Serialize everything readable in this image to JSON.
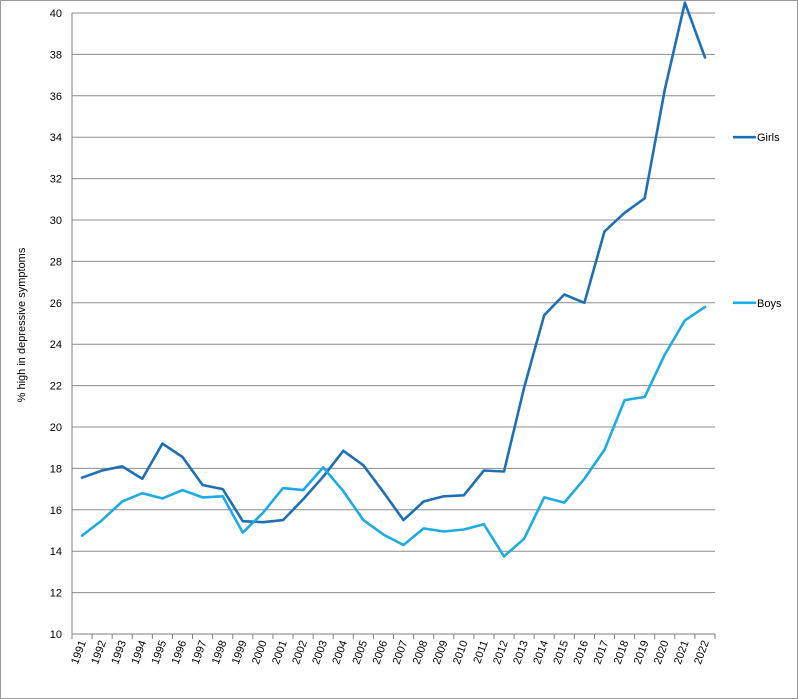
{
  "chart_data": {
    "type": "line",
    "ylabel": "% high in depressive symptoms",
    "xlabel": "",
    "ylim": [
      10,
      40
    ],
    "yticks": [
      10,
      12,
      14,
      16,
      18,
      20,
      22,
      24,
      26,
      28,
      30,
      32,
      34,
      36,
      38,
      40
    ],
    "x": [
      "1991",
      "1992",
      "1993",
      "1994",
      "1995",
      "1996",
      "1997",
      "1998",
      "1999",
      "2000",
      "2001",
      "2002",
      "2003",
      "2004",
      "2005",
      "2006",
      "2007",
      "2008",
      "2009",
      "2010",
      "2011",
      "2012",
      "2013",
      "2014",
      "2015",
      "2016",
      "2017",
      "2018",
      "2019",
      "2020",
      "2021",
      "2022"
    ],
    "grid": "horizontal",
    "legend_position": "right",
    "series": [
      {
        "name": "Girls",
        "color": "#1f6fb4",
        "values": [
          17.55,
          17.9,
          18.1,
          17.5,
          19.2,
          18.55,
          17.2,
          17.0,
          15.45,
          15.4,
          15.5,
          16.5,
          17.6,
          18.85,
          18.15,
          16.85,
          15.5,
          16.4,
          16.65,
          16.7,
          17.9,
          17.85,
          21.9,
          25.4,
          26.4,
          26.0,
          29.45,
          30.35,
          31.05,
          36.3,
          40.5,
          37.85
        ]
      },
      {
        "name": "Boys",
        "color": "#1eaae2",
        "values": [
          14.75,
          15.5,
          16.4,
          16.8,
          16.55,
          16.95,
          16.6,
          16.65,
          14.9,
          15.85,
          17.05,
          16.95,
          18.05,
          16.9,
          15.5,
          14.8,
          14.3,
          15.1,
          14.95,
          15.05,
          15.3,
          13.75,
          14.6,
          16.6,
          16.35,
          17.5,
          18.9,
          21.3,
          21.45,
          23.5,
          25.15,
          25.8
        ]
      }
    ]
  }
}
